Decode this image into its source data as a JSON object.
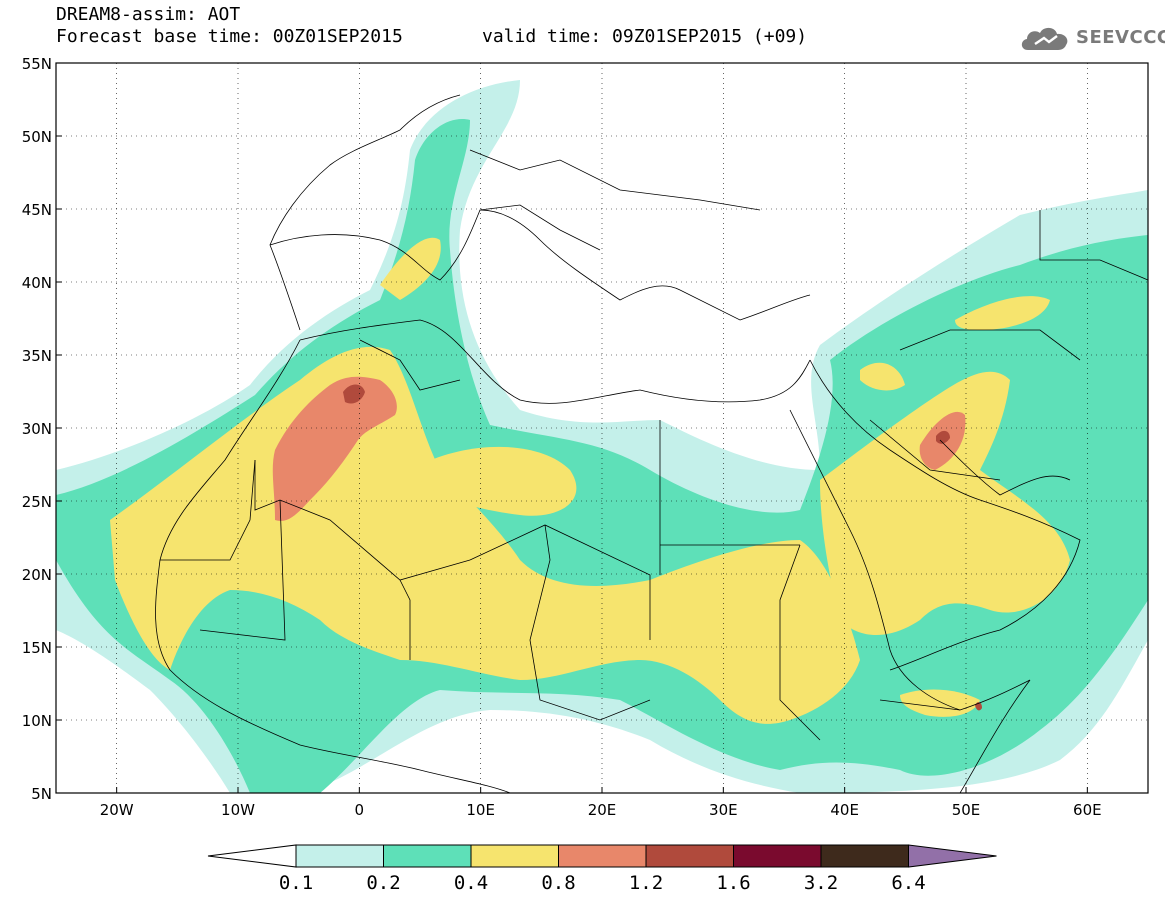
{
  "header": {
    "model_title": "DREAM8-assim: AOT",
    "base_time": "Forecast base time: 00Z01SEP2015",
    "valid_time": "valid time: 09Z01SEP2015 (+09)"
  },
  "logo": {
    "text": "SEEVCCC",
    "icon": "cloud-logo-icon",
    "color": "#7a7a7a"
  },
  "map": {
    "lon_range": [
      -25,
      65
    ],
    "lat_range": [
      5,
      55
    ],
    "lat_ticks": [
      {
        "value": 55,
        "label": "55N"
      },
      {
        "value": 50,
        "label": "50N"
      },
      {
        "value": 45,
        "label": "45N"
      },
      {
        "value": 40,
        "label": "40N"
      },
      {
        "value": 35,
        "label": "35N"
      },
      {
        "value": 30,
        "label": "30N"
      },
      {
        "value": 25,
        "label": "25N"
      },
      {
        "value": 20,
        "label": "20N"
      },
      {
        "value": 15,
        "label": "15N"
      },
      {
        "value": 10,
        "label": "10N"
      },
      {
        "value": 5,
        "label": "5N"
      }
    ],
    "lon_ticks": [
      {
        "value": -20,
        "label": "20W"
      },
      {
        "value": -10,
        "label": "10W"
      },
      {
        "value": 0,
        "label": "0"
      },
      {
        "value": 10,
        "label": "10E"
      },
      {
        "value": 20,
        "label": "20E"
      },
      {
        "value": 30,
        "label": "30E"
      },
      {
        "value": 40,
        "label": "40E"
      },
      {
        "value": 50,
        "label": "50E"
      },
      {
        "value": 60,
        "label": "60E"
      }
    ],
    "gridlines": "dotted",
    "field": "aerosol optical thickness"
  },
  "colorbar": {
    "levels": [
      "0.1",
      "0.2",
      "0.4",
      "0.8",
      "1.2",
      "1.6",
      "3.2",
      "6.4"
    ],
    "colors": [
      "#c4f0ea",
      "#5ee0b8",
      "#f6e46e",
      "#e8876a",
      "#b04a3c",
      "#7a0a2e",
      "#3e2a1c",
      "#9270a8"
    ],
    "under_color": "#ffffff"
  }
}
